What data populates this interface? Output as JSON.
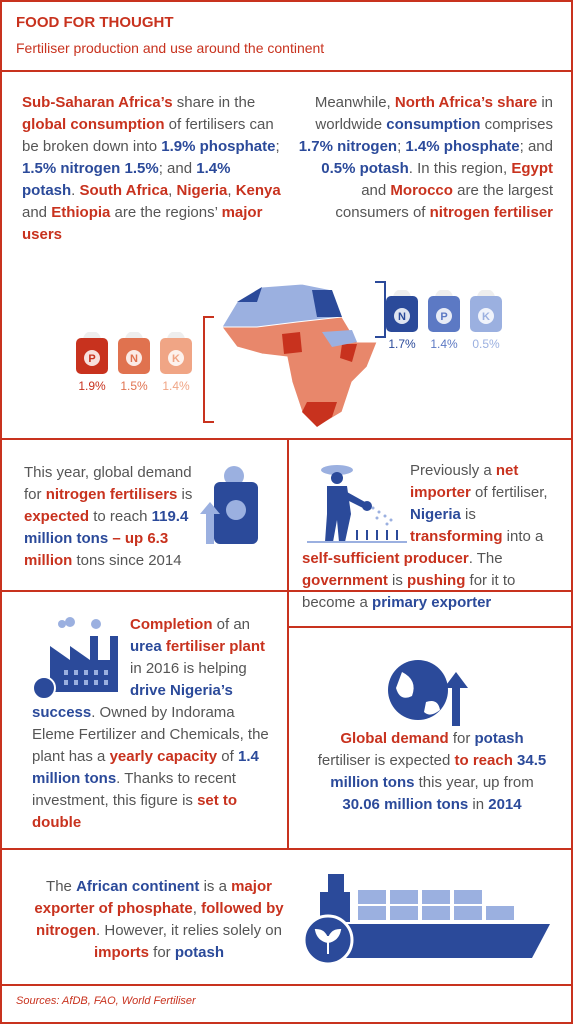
{
  "header": {
    "title": "FOOD FOR THOUGHT",
    "subtitle": "Fertiliser production and use around the continent"
  },
  "intro_left": [
    {
      "text": "Sub-Saharan Africa’s",
      "color": "#c8321e"
    },
    {
      "text": " share in the "
    },
    {
      "text": "global consumption",
      "color": "#c8321e"
    },
    {
      "text": " of fertilisers can be broken down into "
    },
    {
      "text": "1.9% phosphate",
      "color": "#2b4a9a"
    },
    {
      "text": "; "
    },
    {
      "text": "1.5% nitrogen 1.5%",
      "color": "#2b4a9a"
    },
    {
      "text": "; and "
    },
    {
      "text": "1.4% potash",
      "color": "#2b4a9a"
    },
    {
      "text": ". "
    },
    {
      "text": "South Africa",
      "color": "#c8321e"
    },
    {
      "text": ", "
    },
    {
      "text": "Nigeria",
      "color": "#c8321e"
    },
    {
      "text": ", "
    },
    {
      "text": "Kenya",
      "color": "#c8321e"
    },
    {
      "text": " and "
    },
    {
      "text": "Ethiopia",
      "color": "#c8321e"
    },
    {
      "text": " are the regions’ "
    },
    {
      "text": "major users",
      "color": "#c8321e"
    }
  ],
  "intro_right": [
    {
      "text": "Meanwhile, "
    },
    {
      "text": "North Africa’s share",
      "color": "#c8321e"
    },
    {
      "text": " in worldwide "
    },
    {
      "text": "consumption",
      "color": "#2b4a9a"
    },
    {
      "text": " comprises "
    },
    {
      "text": "1.7% nitrogen",
      "color": "#2b4a9a"
    },
    {
      "text": "; "
    },
    {
      "text": "1.4% phosphate",
      "color": "#2b4a9a"
    },
    {
      "text": "; and "
    },
    {
      "text": "0.5% potash",
      "color": "#2b4a9a"
    },
    {
      "text": ". In this region, "
    },
    {
      "text": "Egypt",
      "color": "#c8321e"
    },
    {
      "text": " and "
    },
    {
      "text": "Morocco",
      "color": "#c8321e"
    },
    {
      "text": " are the largest consumers of "
    },
    {
      "text": "nitrogen fertiliser",
      "color": "#c8321e"
    }
  ],
  "bags_subsaharan": [
    {
      "letter": "P",
      "label": "1.9%",
      "color": "#c8321e"
    },
    {
      "letter": "N",
      "label": "1.5%",
      "color": "#e0724f"
    },
    {
      "letter": "K",
      "label": "1.4%",
      "color": "#f0a585"
    }
  ],
  "bags_north": [
    {
      "letter": "N",
      "label": "1.7%",
      "color": "#2b4a9a"
    },
    {
      "letter": "P",
      "label": "1.4%",
      "color": "#5c79c4"
    },
    {
      "letter": "K",
      "label": "0.5%",
      "color": "#9bb0e0"
    }
  ],
  "nitrogen": [
    {
      "text": "This year, global demand for "
    },
    {
      "text": "nitrogen fertilisers",
      "color": "#c8321e"
    },
    {
      "text": " is "
    },
    {
      "text": "expected",
      "color": "#c8321e"
    },
    {
      "text": " to reach "
    },
    {
      "text": "119.4 million tons",
      "color": "#2b4a9a"
    },
    {
      "text": " – up 6.3 million",
      "color": "#c8321e"
    },
    {
      "text": " tons since 2014"
    }
  ],
  "nigeria": [
    {
      "text": "Previously a "
    },
    {
      "text": "net importer",
      "color": "#c8321e"
    },
    {
      "text": " of fertiliser, "
    },
    {
      "text": "Nigeria",
      "color": "#2b4a9a"
    },
    {
      "text": " is "
    },
    {
      "text": "transforming",
      "color": "#c8321e"
    },
    {
      "text": " into a "
    },
    {
      "text": "self-sufficient producer",
      "color": "#c8321e"
    },
    {
      "text": ". The "
    },
    {
      "text": "government",
      "color": "#c8321e"
    },
    {
      "text": " is "
    },
    {
      "text": "pushing",
      "color": "#c8321e"
    },
    {
      "text": " for it to become a "
    },
    {
      "text": "primary exporter",
      "color": "#2b4a9a"
    }
  ],
  "urea_plant": [
    {
      "text": "Completion",
      "color": "#c8321e"
    },
    {
      "text": " of an "
    },
    {
      "text": "urea",
      "color": "#2b4a9a"
    },
    {
      "text": " "
    },
    {
      "text": "fertiliser plant",
      "color": "#c8321e"
    },
    {
      "text": " in 2016 is helping "
    },
    {
      "text": "drive Nigeria’s success",
      "color": "#2b4a9a"
    },
    {
      "text": ". Owned by Indorama Eleme Fertilizer and Chemicals, the plant has a "
    },
    {
      "text": "yearly capacity",
      "color": "#c8321e"
    },
    {
      "text": " of "
    },
    {
      "text": "1.4 million tons",
      "color": "#2b4a9a"
    },
    {
      "text": ". Thanks to recent investment, this figure is "
    },
    {
      "text": "set to double",
      "color": "#c8321e"
    }
  ],
  "potash": [
    {
      "text": "Global demand",
      "color": "#c8321e"
    },
    {
      "text": " for "
    },
    {
      "text": "potash",
      "color": "#2b4a9a"
    },
    {
      "text": " fertiliser is expected "
    },
    {
      "text": "to reach",
      "color": "#c8321e"
    },
    {
      "text": " "
    },
    {
      "text": "34.5 million tons",
      "color": "#2b4a9a"
    },
    {
      "text": " this year, up from "
    },
    {
      "text": "30.06 million tons",
      "color": "#2b4a9a"
    },
    {
      "text": " in "
    },
    {
      "text": "2014",
      "color": "#2b4a9a"
    }
  ],
  "exports": [
    {
      "text": "The "
    },
    {
      "text": "African continent",
      "color": "#2b4a9a"
    },
    {
      "text": " is a "
    },
    {
      "text": "major exporter of phosphate",
      "color": "#c8321e"
    },
    {
      "text": ", "
    },
    {
      "text": "followed by nitrogen",
      "color": "#c8321e"
    },
    {
      "text": ". However, it relies solely on "
    },
    {
      "text": "imports",
      "color": "#c8321e"
    },
    {
      "text": " for "
    },
    {
      "text": "potash",
      "color": "#2b4a9a"
    }
  ],
  "sources": "Sources: AfDB, FAO, World Fertiliser"
}
